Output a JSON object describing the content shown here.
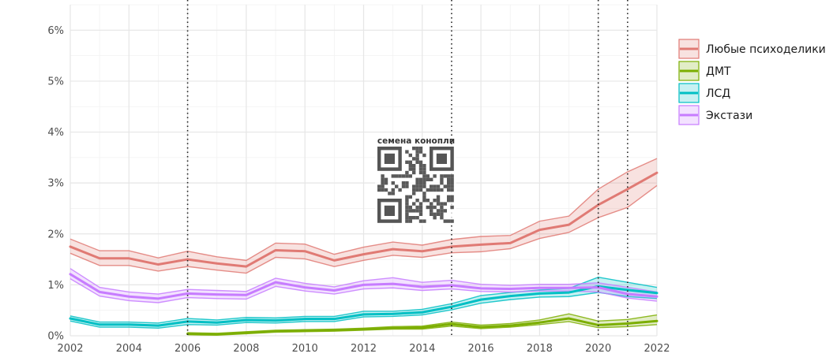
{
  "chart_data": {
    "type": "line",
    "title": "",
    "xlabel": "",
    "ylabel": "",
    "xlim": [
      2002,
      2022
    ],
    "ylim": [
      0,
      6.5
    ],
    "x_ticks": [
      "2002",
      "2004",
      "2006",
      "2008",
      "2010",
      "2012",
      "2014",
      "2016",
      "2018",
      "2020",
      "2022"
    ],
    "y_ticks": [
      "0%",
      "1%",
      "2%",
      "3%",
      "4%",
      "5%",
      "6%"
    ],
    "grid": true,
    "legend_position": "right",
    "vertical_reference_lines": [
      2006,
      2015,
      2020,
      2021
    ],
    "series": [
      {
        "name": "Любые психоделики",
        "color": "#e07a74",
        "x": [
          2002,
          2003,
          2004,
          2005,
          2006,
          2007,
          2008,
          2009,
          2010,
          2011,
          2012,
          2013,
          2014,
          2015,
          2016,
          2017,
          2018,
          2019,
          2020,
          2021,
          2022
        ],
        "values": [
          1.75,
          1.52,
          1.52,
          1.4,
          1.5,
          1.42,
          1.36,
          1.68,
          1.66,
          1.48,
          1.6,
          1.7,
          1.66,
          1.75,
          1.79,
          1.82,
          2.08,
          2.18,
          2.57,
          2.88,
          3.2
        ],
        "lower": [
          1.62,
          1.38,
          1.38,
          1.27,
          1.36,
          1.29,
          1.23,
          1.54,
          1.51,
          1.36,
          1.48,
          1.58,
          1.54,
          1.63,
          1.65,
          1.71,
          1.91,
          2.03,
          2.32,
          2.52,
          2.95
        ],
        "upper": [
          1.9,
          1.67,
          1.67,
          1.53,
          1.66,
          1.55,
          1.48,
          1.82,
          1.8,
          1.6,
          1.74,
          1.84,
          1.78,
          1.89,
          1.95,
          1.97,
          2.25,
          2.35,
          2.88,
          3.22,
          3.48
        ]
      },
      {
        "name": "ДМТ",
        "color": "#7cae00",
        "x": [
          2006,
          2007,
          2008,
          2009,
          2010,
          2011,
          2012,
          2013,
          2014,
          2015,
          2016,
          2017,
          2018,
          2019,
          2020,
          2021,
          2022
        ],
        "values": [
          0.04,
          0.03,
          0.06,
          0.09,
          0.1,
          0.11,
          0.13,
          0.15,
          0.16,
          0.23,
          0.17,
          0.2,
          0.26,
          0.34,
          0.21,
          0.24,
          0.29
        ],
        "lower": [
          0.02,
          0.01,
          0.04,
          0.07,
          0.08,
          0.09,
          0.11,
          0.13,
          0.13,
          0.19,
          0.14,
          0.17,
          0.22,
          0.28,
          0.16,
          0.18,
          0.22
        ],
        "upper": [
          0.06,
          0.05,
          0.08,
          0.11,
          0.12,
          0.13,
          0.15,
          0.18,
          0.19,
          0.27,
          0.21,
          0.24,
          0.31,
          0.43,
          0.29,
          0.32,
          0.41
        ]
      },
      {
        "name": "ЛСД",
        "color": "#00bfc4",
        "x": [
          2002,
          2003,
          2004,
          2005,
          2006,
          2007,
          2008,
          2009,
          2010,
          2011,
          2012,
          2013,
          2014,
          2015,
          2016,
          2017,
          2018,
          2019,
          2020,
          2021,
          2022
        ],
        "values": [
          0.34,
          0.22,
          0.22,
          0.2,
          0.28,
          0.26,
          0.31,
          0.3,
          0.33,
          0.33,
          0.42,
          0.43,
          0.46,
          0.57,
          0.71,
          0.78,
          0.83,
          0.85,
          0.97,
          0.9,
          0.84
        ],
        "lower": [
          0.29,
          0.17,
          0.17,
          0.15,
          0.22,
          0.21,
          0.26,
          0.25,
          0.28,
          0.28,
          0.37,
          0.38,
          0.41,
          0.51,
          0.64,
          0.71,
          0.76,
          0.77,
          0.85,
          0.77,
          0.73
        ],
        "upper": [
          0.39,
          0.27,
          0.27,
          0.25,
          0.34,
          0.31,
          0.36,
          0.35,
          0.38,
          0.38,
          0.48,
          0.48,
          0.52,
          0.63,
          0.79,
          0.85,
          0.9,
          0.93,
          1.15,
          1.05,
          0.95
        ]
      },
      {
        "name": "Экстази",
        "color": "#c77cff",
        "x": [
          2002,
          2003,
          2004,
          2005,
          2006,
          2007,
          2008,
          2009,
          2010,
          2011,
          2012,
          2013,
          2014,
          2015,
          2016,
          2017,
          2018,
          2019,
          2020,
          2021,
          2022
        ],
        "values": [
          1.21,
          0.86,
          0.77,
          0.73,
          0.83,
          0.81,
          0.8,
          1.05,
          0.95,
          0.89,
          1.0,
          1.02,
          0.96,
          0.99,
          0.93,
          0.92,
          0.94,
          0.94,
          0.95,
          0.82,
          0.77
        ],
        "lower": [
          1.12,
          0.78,
          0.69,
          0.65,
          0.75,
          0.73,
          0.72,
          0.97,
          0.88,
          0.82,
          0.92,
          0.94,
          0.89,
          0.92,
          0.87,
          0.86,
          0.88,
          0.88,
          0.86,
          0.74,
          0.68
        ],
        "upper": [
          1.32,
          0.95,
          0.86,
          0.82,
          0.91,
          0.89,
          0.87,
          1.13,
          1.03,
          0.96,
          1.08,
          1.14,
          1.05,
          1.09,
          1.01,
          0.99,
          1.01,
          1.01,
          1.04,
          0.95,
          0.86
        ]
      }
    ]
  },
  "watermark": {
    "caption": "семена конопли",
    "kind": "qr-code"
  }
}
